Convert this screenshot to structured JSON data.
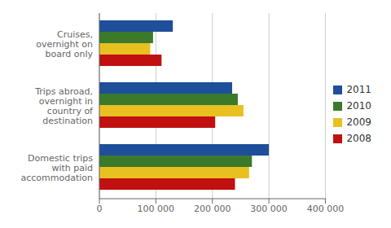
{
  "chart_data": {
    "type": "bar",
    "orientation": "horizontal",
    "categories": [
      "Cruises,\novernight on\nboard only",
      "Trips abroad,\novernight in\ncountry of\ndestination",
      "Domestic trips\nwith paid\naccommodation"
    ],
    "series": [
      {
        "name": "2011",
        "color": "#1F4E9A",
        "values": [
          130000,
          235000,
          300000
        ]
      },
      {
        "name": "2010",
        "color": "#3A7A2A",
        "values": [
          95000,
          245000,
          270000
        ]
      },
      {
        "name": "2009",
        "color": "#E8C020",
        "values": [
          90000,
          255000,
          265000
        ]
      },
      {
        "name": "2008",
        "color": "#C01010",
        "values": [
          110000,
          205000,
          240000
        ]
      }
    ],
    "xlim": [
      0,
      400000
    ],
    "xticks": [
      0,
      {
        "value": 100000,
        "label": "100 000"
      },
      {
        "value": 200000,
        "label": "200 000"
      },
      {
        "value": 300000,
        "label": "300 000"
      },
      {
        "value": 400000,
        "label": "400 000"
      }
    ],
    "grid": true,
    "legend": "right"
  }
}
